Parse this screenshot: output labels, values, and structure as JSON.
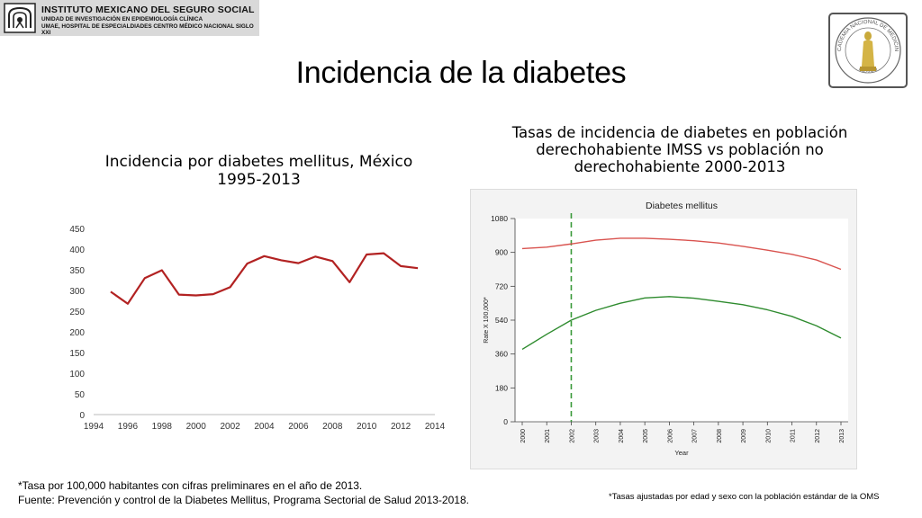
{
  "header": {
    "line1": "INSTITUTO MEXICANO DEL SEGURO SOCIAL",
    "line2": "UNIDAD DE INVESTIGACIÓN EN EPIDEMIOLOGÍA CLÍNICA",
    "line3": "UMAE, HOSPITAL DE ESPECIALDIADES CENTRO MÉDICO NACIONAL SIGLO XXI"
  },
  "seal": {
    "top_text": "ACADEMIA NACIONAL DE MEDICINA",
    "bottom_text": "MÉXICO"
  },
  "title": "Incidencia de la diabetes",
  "left_chart_title_line1": "Incidencia por diabetes mellitus, México",
  "left_chart_title_line2": "1995-2013",
  "right_chart_title_line1": "Tasas de incidencia  de diabetes en población",
  "right_chart_title_line2": "derechohabiente IMSS vs población no",
  "right_chart_title_line3": "derechohabiente 2000-2013",
  "footnote_left_line1": "*Tasa por 100,000 habitantes con cifras preliminares en el año de 2013.",
  "footnote_left_line2": "Fuente:  Prevención y control de la Diabetes Mellitus, Programa Sectorial de Salud 2013-2018.",
  "footnote_right": "*Tasas ajustadas por edad y sexo con la población estándar de la OMS",
  "colors": {
    "line_red": "#b22222",
    "line_red_light": "#d9534f",
    "line_green": "#2e8b2e",
    "dashed_green": "#3a9a3a"
  },
  "chart_data": [
    {
      "type": "line",
      "x": [
        1995,
        1996,
        1997,
        1998,
        1999,
        2000,
        2001,
        2002,
        2003,
        2004,
        2005,
        2006,
        2007,
        2008,
        2009,
        2010,
        2011,
        2012,
        2013
      ],
      "series": [
        {
          "values": [
            297,
            268,
            330,
            349,
            290,
            288,
            291,
            308,
            365,
            383,
            373,
            366,
            382,
            371,
            320,
            387,
            390,
            359,
            354
          ]
        }
      ],
      "xticks": [
        "1994",
        "1996",
        "1998",
        "2000",
        "2002",
        "2004",
        "2006",
        "2008",
        "2010",
        "2012",
        "2014"
      ],
      "yticks": [
        "0",
        "50",
        "100",
        "150",
        "200",
        "250",
        "300",
        "350",
        "400",
        "450"
      ],
      "xlim": [
        1994,
        2014
      ],
      "ylim": [
        0,
        450
      ]
    },
    {
      "type": "line",
      "title": "Diabetes mellitus",
      "xlabel": "Year",
      "ylabel": "Rate X 100,000*",
      "x": [
        "2000",
        "2001",
        "2002",
        "2003",
        "2004",
        "2005",
        "2006",
        "2007",
        "2008",
        "2009",
        "2010",
        "2011",
        "2012",
        "2013"
      ],
      "series": [
        {
          "values": [
            920,
            928,
            945,
            965,
            975,
            975,
            970,
            962,
            950,
            932,
            912,
            890,
            860,
            810
          ]
        },
        {
          "values": [
            385,
            465,
            540,
            592,
            630,
            658,
            665,
            657,
            640,
            622,
            595,
            560,
            510,
            445
          ]
        }
      ],
      "yticks": [
        "0",
        "180",
        "360",
        "540",
        "720",
        "900",
        "1080"
      ],
      "ylim": [
        0,
        1080
      ],
      "reference_line_x": "2002"
    }
  ]
}
